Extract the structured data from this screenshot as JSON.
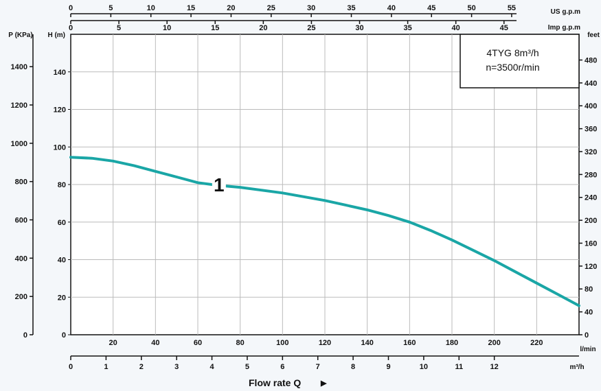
{
  "chart_data": {
    "type": "line",
    "title": "4TYG 8m³/h",
    "subtitle": "n=3500r/min",
    "curve_label": "1",
    "xlabel": "Flow rate Q",
    "xlabel_arrow": "▶",
    "series": [
      {
        "name": "1",
        "color": "#1aa6a6",
        "x": [
          0,
          10,
          20,
          30,
          40,
          50,
          60,
          70,
          80,
          90,
          100,
          110,
          120,
          130,
          140,
          150,
          160,
          170,
          180,
          190,
          200,
          210,
          220,
          230,
          240
        ],
        "y": [
          94.5,
          94,
          92.5,
          90,
          87,
          84,
          81,
          79.5,
          78.5,
          77,
          75.5,
          73.5,
          71.5,
          69,
          66.5,
          63.5,
          60,
          55.5,
          50.5,
          45,
          39.5,
          33.5,
          27.5,
          21.5,
          15.5
        ]
      }
    ],
    "axes": {
      "x_lmin": {
        "label": "l/min",
        "range": [
          0,
          240
        ],
        "ticks": [
          20,
          40,
          60,
          80,
          100,
          120,
          140,
          160,
          180,
          200,
          220
        ]
      },
      "x_m3h": {
        "label": "m³/h",
        "range": [
          0,
          14.4
        ],
        "ticks": [
          0,
          1,
          2,
          3,
          4,
          5,
          6,
          7,
          8,
          9,
          10,
          11,
          12
        ]
      },
      "x_usgpm": {
        "label": "US g.p.m",
        "range": [
          0,
          63.4
        ],
        "ticks": [
          0,
          5,
          10,
          15,
          20,
          25,
          30,
          35,
          40,
          45,
          50,
          55
        ]
      },
      "x_impgpm": {
        "label": "Imp g.p.m",
        "range": [
          0,
          52.8
        ],
        "ticks": [
          0,
          5,
          10,
          15,
          20,
          25,
          30,
          35,
          40,
          45
        ]
      },
      "y_head": {
        "label": "H (m)",
        "range": [
          0,
          160
        ],
        "ticks": [
          0,
          20,
          40,
          60,
          80,
          100,
          120,
          140
        ],
        "tick_labels": [
          "0",
          "20",
          "40",
          "60",
          "80",
          "100",
          "120",
          "140"
        ]
      },
      "y_pressure": {
        "label": "P (KPa)",
        "ticks": [
          0,
          200,
          400,
          600,
          800,
          1000,
          1200,
          1400
        ],
        "tick_labels": [
          "0",
          "200",
          "400",
          "600",
          "800",
          "1000",
          "1200",
          "1400"
        ]
      },
      "y_feet": {
        "label": "feet",
        "ticks": [
          0,
          40,
          80,
          120,
          160,
          200,
          240,
          280,
          320,
          360,
          400,
          440,
          480
        ],
        "tick_labels": [
          "0",
          "40",
          "80",
          "120",
          "160",
          "200",
          "240",
          "280",
          "320",
          "360",
          "400",
          "440",
          "480"
        ]
      }
    },
    "grid": true,
    "legend": "top-right box"
  }
}
